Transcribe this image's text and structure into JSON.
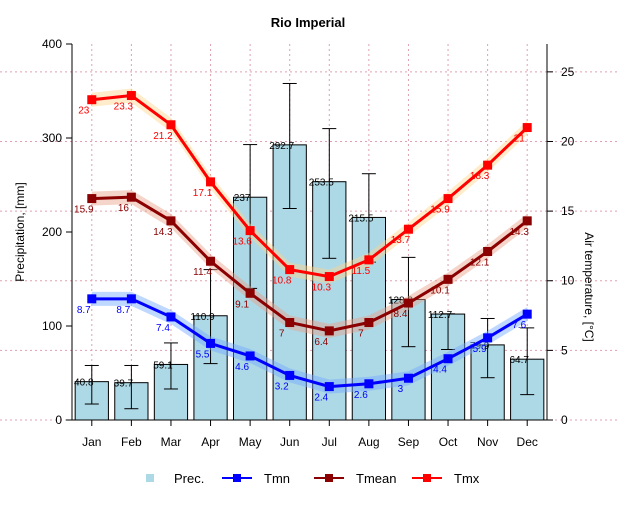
{
  "chart_data": {
    "type": "bar+line",
    "title": "Rio Imperial",
    "ylabel_left": "Precipitation, [mm]",
    "ylabel_right": "Air temperature, [°C]",
    "ylim_left": [
      0,
      400
    ],
    "ylim_right": [
      0,
      27
    ],
    "yticks_left": [
      "0",
      "100",
      "200",
      "300",
      "400"
    ],
    "yticks_right": [
      "0",
      "5",
      "10",
      "15",
      "20",
      "25"
    ],
    "grid": true,
    "legend_placement": "bottom",
    "categories": [
      "Jan",
      "Feb",
      "Mar",
      "Apr",
      "May",
      "Jun",
      "Jul",
      "Aug",
      "Sep",
      "Oct",
      "Nov",
      "Dec"
    ],
    "precipitation": {
      "name": "Prec.",
      "color": "#add8e6",
      "values": [
        40.8,
        39.7,
        59.1,
        110.9,
        237,
        292.7,
        253.5,
        215.5,
        128.2,
        112.7,
        79.9,
        64.7
      ],
      "labels": [
        "40.8",
        "39.7",
        "59.1",
        "110.9",
        "237",
        "292.7",
        "253.5",
        "215.5",
        "128.2",
        "112.7",
        "79.9",
        "64.7"
      ],
      "error_low": [
        17,
        12,
        33,
        60,
        140,
        225,
        172,
        168,
        78,
        75,
        45,
        27
      ],
      "error_high": [
        58,
        58,
        82,
        160,
        293,
        358,
        310,
        262,
        173,
        113,
        108,
        98
      ]
    },
    "series": [
      {
        "name": "Tmn",
        "color": "#0000ff",
        "band_color": "#6fa8ff",
        "values": [
          8.7,
          8.7,
          7.4,
          5.5,
          4.6,
          3.2,
          2.4,
          2.6,
          3,
          4.4,
          5.9,
          7.6
        ],
        "labels": [
          "8.7",
          "8.7",
          "7.4",
          "5.5",
          "4.6",
          "3.2",
          "2.4",
          "2.6",
          "3",
          "4.4",
          "5.9",
          "7.6"
        ]
      },
      {
        "name": "Tmean",
        "color": "#8b0000",
        "band_color": "#e8a088",
        "values": [
          15.9,
          16,
          14.3,
          11.4,
          9.1,
          7,
          6.4,
          7,
          8.4,
          10.1,
          12.1,
          14.3
        ],
        "labels": [
          "15.9",
          "16",
          "14.3",
          "11.4",
          "9.1",
          "7",
          "6.4",
          "7",
          "8.4",
          "10.1",
          "12.1",
          "14.3"
        ]
      },
      {
        "name": "Tmx",
        "color": "#ff0000",
        "band_color": "#ffd58a",
        "values": [
          23,
          23.3,
          21.2,
          17.1,
          13.6,
          10.8,
          10.3,
          11.5,
          13.7,
          15.9,
          18.3,
          21
        ],
        "labels": [
          "23",
          "23.3",
          "21.2",
          "17.1",
          "13.6",
          "10.8",
          "10.3",
          "11.5",
          "13.7",
          "15.9",
          "18.3",
          "21"
        ]
      }
    ]
  }
}
